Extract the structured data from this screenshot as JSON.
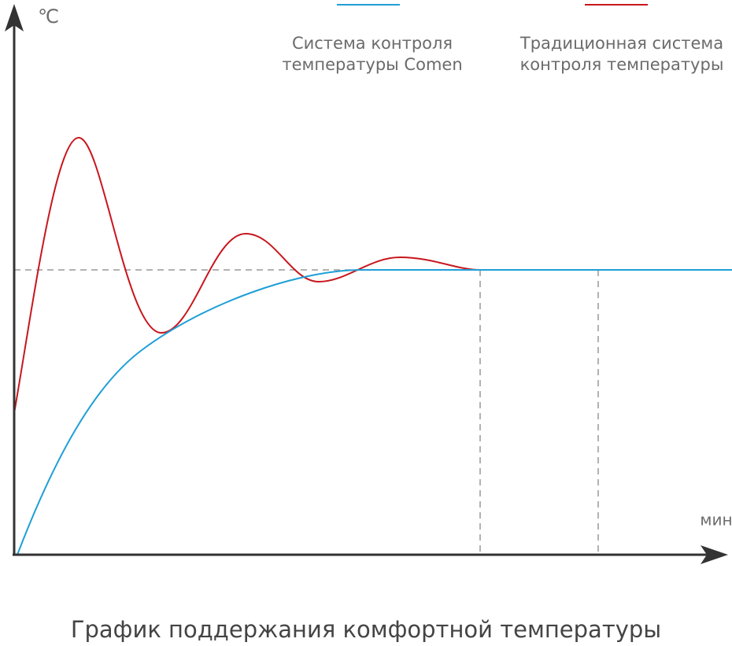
{
  "y_unit": "℃",
  "x_unit": "мин",
  "legend": [
    {
      "lines": [
        "Система контроля",
        "температуры Comen"
      ]
    },
    {
      "lines": [
        "Традиционная система",
        "контроля температуры"
      ]
    }
  ],
  "title": "График поддержания комфортной температуры"
}
